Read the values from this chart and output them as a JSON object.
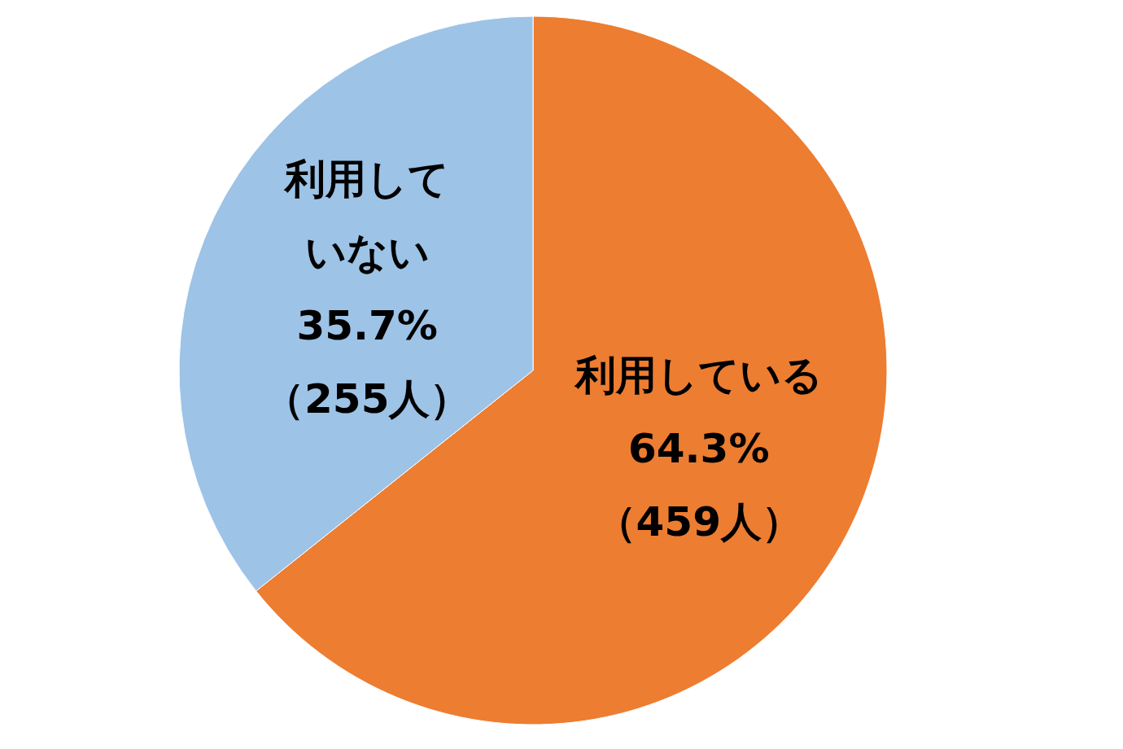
{
  "chart_data": {
    "type": "pie",
    "categories": [
      "利用している",
      "利用していない"
    ],
    "values": [
      64.3,
      35.7
    ],
    "colors": [
      "#ed7d31",
      "#9dc3e6"
    ],
    "value_labels": [
      "64.3%",
      "35.7%"
    ],
    "annotations": [
      {
        "text": "（459人）",
        "x": "利用している"
      },
      {
        "text": "（255人）",
        "x": "利用していない"
      }
    ]
  }
}
